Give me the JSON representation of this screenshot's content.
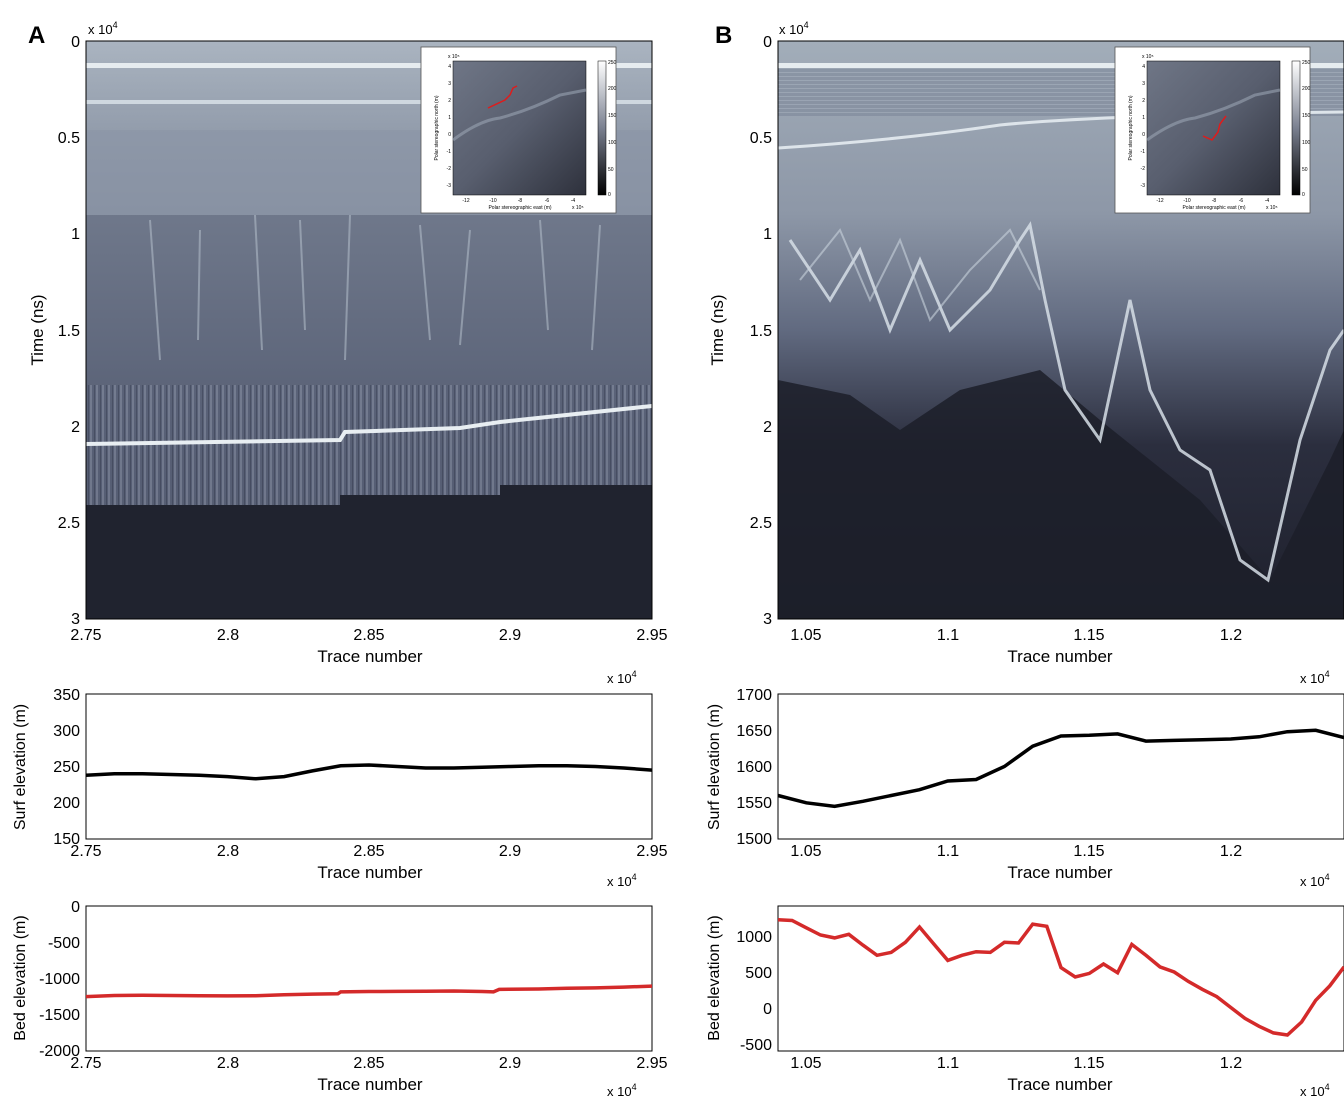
{
  "panels": {
    "A": {
      "letter": "A",
      "radargram": {
        "exponent": "x 10",
        "exponent_power": "4",
        "ylabel": "Time (ns)",
        "xlabel": "Trace number",
        "yticks": [
          "0",
          "0.5",
          "1",
          "1.5",
          "2",
          "2.5",
          "3"
        ],
        "xticks": [
          "2.75",
          "2.8",
          "2.85",
          "2.9",
          "2.95"
        ],
        "x_exponent": "x 10",
        "x_exponent_power": "4"
      },
      "inset": {
        "ylabel": "Polar stereographic north (m)",
        "xlabel": "Polar stereographic east (m)",
        "colorbar_ticks": [
          "250",
          "200",
          "150",
          "100",
          "50",
          "0"
        ],
        "yticks": [
          "4",
          "3",
          "2",
          "1",
          "0",
          "-1",
          "-2",
          "-3"
        ],
        "xticks": [
          "-12",
          "-10",
          "-8",
          "-6",
          "-4"
        ],
        "exp_top": "x 10⁵",
        "exp_bottom": "x 10⁵"
      },
      "surface": {
        "ylabel": "Surf elevation (m)",
        "xlabel": "Trace number",
        "yticks": [
          "350",
          "300",
          "250",
          "200",
          "150"
        ],
        "xticks": [
          "2.75",
          "2.8",
          "2.85",
          "2.9",
          "2.95"
        ],
        "x_exponent": "x 10",
        "x_exponent_power": "4",
        "color": "#000000"
      },
      "bed": {
        "ylabel": "Bed elevation (m)",
        "xlabel": "Trace number",
        "yticks": [
          "0",
          "-500",
          "-1000",
          "-1500",
          "-2000"
        ],
        "xticks": [
          "2.75",
          "2.8",
          "2.85",
          "2.9",
          "2.95"
        ],
        "x_exponent": "x 10",
        "x_exponent_power": "4",
        "color": "#d42a2a"
      }
    },
    "B": {
      "letter": "B",
      "radargram": {
        "exponent": "x 10",
        "exponent_power": "4",
        "ylabel": "Time (ns)",
        "xlabel": "Trace number",
        "yticks": [
          "0",
          "0.5",
          "1",
          "1.5",
          "2",
          "2.5",
          "3"
        ],
        "xticks": [
          "1.05",
          "1.1",
          "1.15",
          "1.2"
        ],
        "x_exponent": "x 10",
        "x_exponent_power": "4"
      },
      "inset": {
        "ylabel": "Polar stereographic north (m)",
        "xlabel": "Polar stereographic east (m)",
        "colorbar_ticks": [
          "250",
          "200",
          "150",
          "100",
          "50",
          "0"
        ],
        "yticks": [
          "4",
          "3",
          "2",
          "1",
          "0",
          "-1",
          "-2",
          "-3"
        ],
        "xticks": [
          "-12",
          "-10",
          "-8",
          "-6",
          "-4"
        ],
        "exp_top": "x 10⁵",
        "exp_bottom": "x 10⁵"
      },
      "surface": {
        "ylabel": "Surf elevation (m)",
        "xlabel": "Trace number",
        "yticks": [
          "1700",
          "1650",
          "1600",
          "1550",
          "1500"
        ],
        "xticks": [
          "1.05",
          "1.1",
          "1.15",
          "1.2"
        ],
        "x_exponent": "x 10",
        "x_exponent_power": "4",
        "color": "#000000"
      },
      "bed": {
        "ylabel": "Bed elevation (m)",
        "xlabel": "Trace number",
        "yticks": [
          "1000",
          "500",
          "0",
          "-500"
        ],
        "xticks": [
          "1.05",
          "1.1",
          "1.15",
          "1.2"
        ],
        "x_exponent": "x 10",
        "x_exponent_power": "4",
        "color": "#d42a2a"
      }
    }
  },
  "chart_data": [
    {
      "type": "line",
      "panel": "A-surface",
      "x": [
        27500,
        27600,
        27700,
        27800,
        27900,
        28000,
        28100,
        28200,
        28300,
        28400,
        28500,
        28600,
        28700,
        28800,
        28900,
        29000,
        29100,
        29200,
        29300,
        29400,
        29500
      ],
      "series": [
        {
          "values": [
            238,
            240,
            240,
            239,
            238,
            236,
            233,
            236,
            244,
            251,
            252,
            250,
            248,
            248,
            249,
            250,
            251,
            251,
            250,
            248,
            245
          ]
        }
      ],
      "xlim": [
        27500,
        29500
      ],
      "ylim": [
        150,
        350
      ],
      "xlabel": "Trace number",
      "ylabel": "Surf elevation (m)"
    },
    {
      "type": "line",
      "panel": "A-bed",
      "x": [
        27500,
        27600,
        27700,
        27800,
        27900,
        28000,
        28100,
        28200,
        28300,
        28390,
        28400,
        28500,
        28600,
        28700,
        28800,
        28900,
        28940,
        28960,
        29100,
        29200,
        29300,
        29400,
        29500
      ],
      "series": [
        {
          "values": [
            -1250,
            -1235,
            -1232,
            -1235,
            -1238,
            -1240,
            -1238,
            -1225,
            -1215,
            -1210,
            -1185,
            -1180,
            -1178,
            -1175,
            -1172,
            -1180,
            -1185,
            -1150,
            -1145,
            -1135,
            -1130,
            -1118,
            -1105
          ]
        }
      ],
      "xlim": [
        27500,
        29500
      ],
      "ylim": [
        -2000,
        0
      ],
      "xlabel": "Trace number",
      "ylabel": "Bed elevation (m)"
    },
    {
      "type": "line",
      "panel": "B-surface",
      "x": [
        10400,
        10500,
        10600,
        10700,
        10800,
        10900,
        11000,
        11100,
        11200,
        11300,
        11400,
        11500,
        11600,
        11700,
        11800,
        11900,
        12000,
        12100,
        12200,
        12300,
        12400
      ],
      "series": [
        {
          "values": [
            1560,
            1550,
            1545,
            1552,
            1560,
            1568,
            1580,
            1582,
            1600,
            1628,
            1642,
            1643,
            1645,
            1635,
            1636,
            1637,
            1638,
            1641,
            1648,
            1650,
            1640
          ]
        }
      ],
      "xlim": [
        10400,
        12400
      ],
      "ylim": [
        1500,
        1700
      ],
      "xlabel": "Trace number",
      "ylabel": "Surf elevation (m)"
    },
    {
      "type": "line",
      "panel": "B-bed",
      "x": [
        10400,
        10450,
        10500,
        10550,
        10600,
        10650,
        10700,
        10750,
        10800,
        10850,
        10900,
        10950,
        11000,
        11050,
        11100,
        11150,
        11200,
        11250,
        11300,
        11350,
        11400,
        11450,
        11500,
        11550,
        11600,
        11650,
        11700,
        11750,
        11800,
        11850,
        11900,
        11950,
        12000,
        12050,
        12100,
        12150,
        12200,
        12250,
        12300,
        12350,
        12400
      ],
      "series": [
        {
          "values": [
            1210,
            1200,
            1100,
            1000,
            960,
            1010,
            860,
            720,
            760,
            900,
            1110,
            880,
            650,
            720,
            770,
            760,
            900,
            890,
            1150,
            1120,
            550,
            420,
            470,
            600,
            480,
            870,
            720,
            560,
            490,
            360,
            250,
            150,
            0,
            -150,
            -260,
            -350,
            -380,
            -200,
            100,
            300,
            560
          ]
        }
      ],
      "xlim": [
        10400,
        12400
      ],
      "ylim": [
        -600,
        1400
      ],
      "xlabel": "Trace number",
      "ylabel": "Bed elevation (m)"
    }
  ]
}
